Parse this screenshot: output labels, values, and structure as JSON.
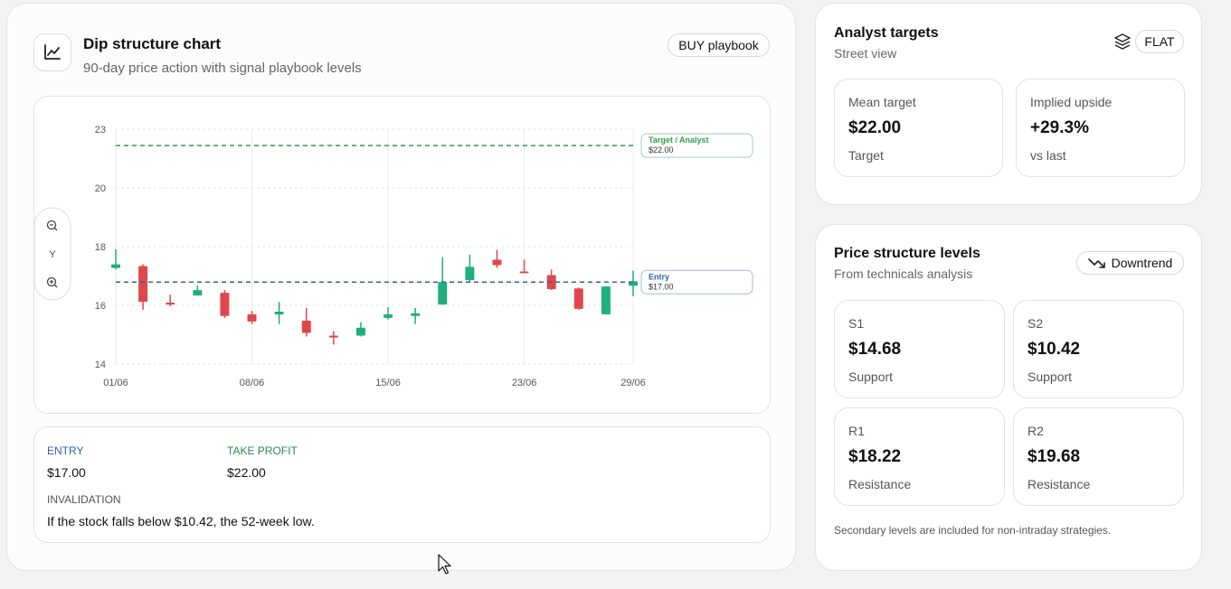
{
  "header": {
    "title": "Dip structure chart",
    "subtitle": "90-day price action with signal playbook levels",
    "badge": "BUY playbook"
  },
  "chart_controls": {
    "axis": "Y"
  },
  "chart_data": {
    "type": "candlestick",
    "categories": [
      "01/06",
      null,
      null,
      null,
      null,
      "08/06",
      null,
      null,
      null,
      null,
      "15/06",
      null,
      null,
      null,
      null,
      "23/06",
      null,
      null,
      null,
      "29/06"
    ],
    "open": [
      17.52,
      17.59,
      16.25,
      16.51,
      16.61,
      15.82,
      15.82,
      15.59,
      15.04,
      15.04,
      15.69,
      15.76,
      16.18,
      17.07,
      17.82,
      17.39,
      17.26,
      16.77,
      15.82,
      16.87
    ],
    "high": [
      18.2,
      17.65,
      16.54,
      16.87,
      16.71,
      15.95,
      16.28,
      16.05,
      15.2,
      15.53,
      16.08,
      16.05,
      17.92,
      18.01,
      18.18,
      17.82,
      17.46,
      16.8,
      16.84,
      17.42
    ],
    "low": [
      17.46,
      15.99,
      16.12,
      16.51,
      15.69,
      15.46,
      15.46,
      15.01,
      14.71,
      15.01,
      15.63,
      15.46,
      16.18,
      17.0,
      17.52,
      17.33,
      16.71,
      15.99,
      15.82,
      16.48
    ],
    "close": [
      17.65,
      16.28,
      16.18,
      16.71,
      15.76,
      15.56,
      15.92,
      15.14,
      14.97,
      15.33,
      15.82,
      15.86,
      17.0,
      17.56,
      17.62,
      17.33,
      16.74,
      16.02,
      16.84,
      17.03
    ],
    "up_color": "#1fae7e",
    "down_color": "#e0474c",
    "ylim": [
      14,
      22.6
    ],
    "yticks": [
      14,
      {
        "value": 16.15,
        "label": "16"
      },
      {
        "value": 18.3,
        "label": "18"
      },
      {
        "value": 20.45,
        "label": "20"
      },
      {
        "value": 22.6,
        "label": "23"
      }
    ],
    "grid": true,
    "lines": [
      {
        "name": "Target / Analyst",
        "value": 22,
        "value_label": "$22.00",
        "color": "#2e9e4f"
      },
      {
        "name": "Entry",
        "value": 17,
        "value_label": "$17.00",
        "color": "#2f5fb3"
      }
    ]
  },
  "playbook": {
    "entry": {
      "label": "ENTRY",
      "value": "$17.00"
    },
    "take_profit": {
      "label": "TAKE PROFIT",
      "value": "$22.00"
    },
    "invalidation": {
      "label": "INVALIDATION",
      "text": "If the stock falls below $10.42, the 52-week low."
    }
  },
  "analyst": {
    "title": "Analyst targets",
    "subtitle": "Street view",
    "badge": "FLAT",
    "cards": [
      {
        "label": "Mean target",
        "value": "$22.00",
        "note": "Target"
      },
      {
        "label": "Implied upside",
        "value": "+29.3%",
        "note": "vs last"
      }
    ]
  },
  "levels": {
    "title": "Price structure levels",
    "subtitle": "From technicals analysis",
    "badge": "Downtrend",
    "cards": [
      {
        "label": "S1",
        "value": "$14.68",
        "note": "Support"
      },
      {
        "label": "S2",
        "value": "$10.42",
        "note": "Support"
      },
      {
        "label": "R1",
        "value": "$18.22",
        "note": "Resistance"
      },
      {
        "label": "R2",
        "value": "$19.68",
        "note": "Resistance"
      }
    ],
    "footnote": "Secondary levels are included for non-intraday strategies."
  }
}
